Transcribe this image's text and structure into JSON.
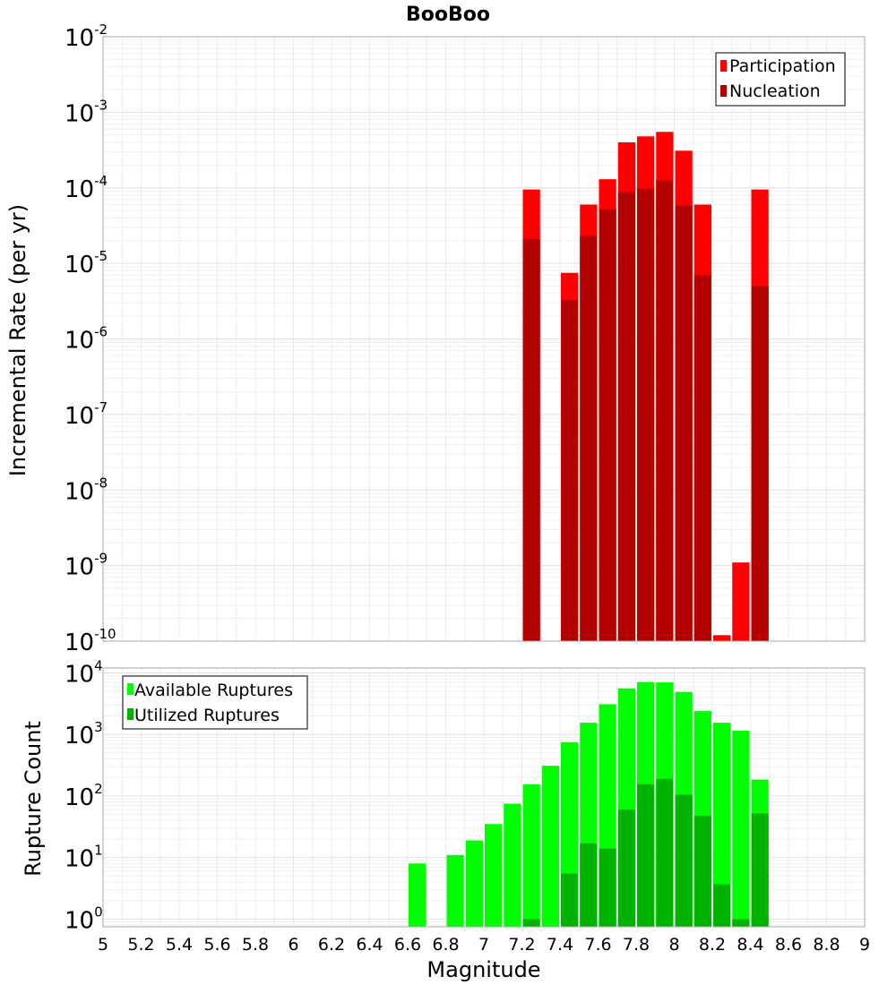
{
  "chart_data": [
    {
      "type": "bar",
      "title": "BooBoo",
      "xlabel": "",
      "ylabel": "Incremental Rate (per yr)",
      "yscale": "log",
      "ylim": [
        1e-10,
        0.01
      ],
      "xlim": [
        5,
        9
      ],
      "x": [
        7.25,
        7.35,
        7.45,
        7.55,
        7.65,
        7.75,
        7.85,
        7.95,
        8.05,
        8.15,
        8.25,
        8.35,
        8.45
      ],
      "bar_width": 0.1,
      "grid": true,
      "legend_position": "top-right",
      "series": [
        {
          "name": "Participation",
          "color": "#ff0000",
          "values": [
            9.5e-05,
            null,
            7.5e-06,
            6e-05,
            0.00013,
            0.0004,
            0.00048,
            0.00055,
            0.00031,
            6e-05,
            1.2e-10,
            1.1e-09,
            9.5e-05
          ]
        },
        {
          "name": "Nucleation",
          "color": "#b30000",
          "values": [
            2.1e-05,
            null,
            3.3e-06,
            2.3e-05,
            5.2e-05,
            8.8e-05,
            9.8e-05,
            0.000125,
            5.8e-05,
            7e-06,
            null,
            null,
            5e-06
          ]
        }
      ],
      "ytick_labels": [
        {
          "base": "10",
          "exp": "-10"
        },
        {
          "base": "10",
          "exp": "-9"
        },
        {
          "base": "10",
          "exp": "-8"
        },
        {
          "base": "10",
          "exp": "-7"
        },
        {
          "base": "10",
          "exp": "-6"
        },
        {
          "base": "10",
          "exp": "-5"
        },
        {
          "base": "10",
          "exp": "-4"
        },
        {
          "base": "10",
          "exp": "-3"
        },
        {
          "base": "10",
          "exp": "-2"
        }
      ]
    },
    {
      "type": "bar",
      "title": "",
      "xlabel": "Magnitude",
      "ylabel": "Rupture Count",
      "yscale": "log",
      "ylim": [
        0.75,
        12000
      ],
      "xlim": [
        5,
        9
      ],
      "x": [
        6.65,
        6.75,
        6.85,
        6.95,
        7.05,
        7.15,
        7.25,
        7.35,
        7.45,
        7.55,
        7.65,
        7.75,
        7.85,
        7.95,
        8.05,
        8.15,
        8.25,
        8.35,
        8.45
      ],
      "bar_width": 0.1,
      "grid": true,
      "legend_position": "top-left",
      "series": [
        {
          "name": "Available Ruptures",
          "color": "#00ff00",
          "values": [
            8,
            null,
            11,
            19,
            35,
            75,
            155,
            310,
            750,
            1550,
            3100,
            5600,
            7100,
            7000,
            4900,
            2400,
            1550,
            1150,
            185
          ]
        },
        {
          "name": "Utilized Ruptures",
          "color": "#00b300",
          "values": [
            null,
            null,
            null,
            null,
            null,
            null,
            1,
            null,
            5.5,
            17,
            14,
            60,
            155,
            190,
            105,
            48,
            3.7,
            1,
            52
          ]
        }
      ],
      "xtick_labels": [
        "5",
        "5.2",
        "5.4",
        "5.6",
        "5.8",
        "6",
        "6.2",
        "6.4",
        "6.6",
        "6.8",
        "7",
        "7.2",
        "7.4",
        "7.6",
        "7.8",
        "8",
        "8.2",
        "8.4",
        "8.6",
        "8.8",
        "9"
      ],
      "ytick_labels": [
        {
          "base": "10",
          "exp": "0"
        },
        {
          "base": "10",
          "exp": "1"
        },
        {
          "base": "10",
          "exp": "2"
        },
        {
          "base": "10",
          "exp": "3"
        },
        {
          "base": "10",
          "exp": "4"
        }
      ]
    }
  ]
}
